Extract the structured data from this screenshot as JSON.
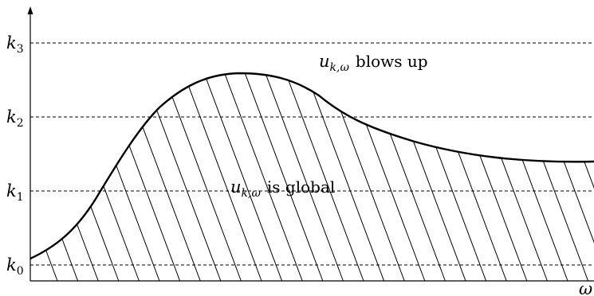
{
  "axes": {
    "y_axis_label": "",
    "x_axis_label": "ω"
  },
  "levels": [
    {
      "name": "k",
      "sub": "0"
    },
    {
      "name": "k",
      "sub": "1"
    },
    {
      "name": "k",
      "sub": "2"
    },
    {
      "name": "k",
      "sub": "3"
    }
  ],
  "regions": {
    "upper": {
      "symbol": "u",
      "subscript": "k,ω",
      "text": "blows up"
    },
    "lower": {
      "symbol": "u",
      "subscript": "k,ω",
      "text": "is global"
    }
  },
  "style": {
    "line_color": "#000000",
    "background": "#ffffff"
  }
}
